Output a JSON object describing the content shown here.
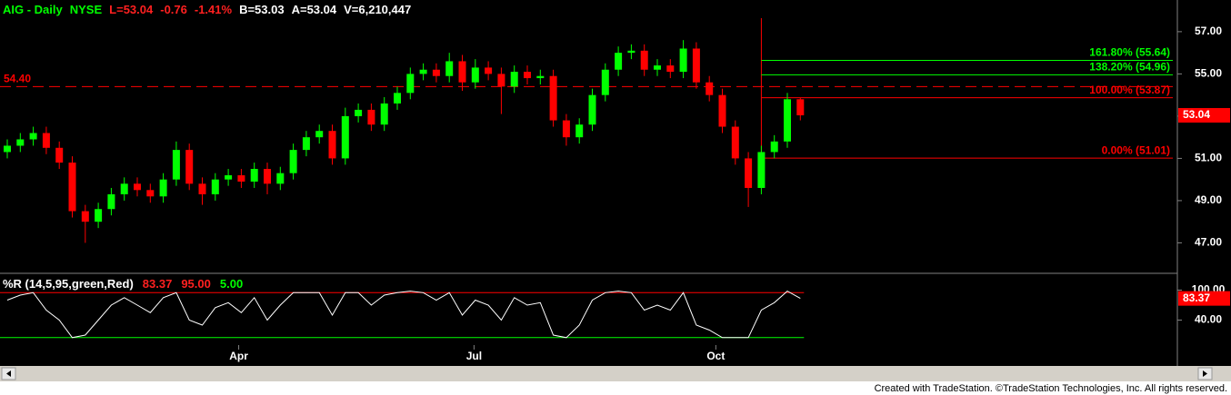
{
  "header": {
    "symbol": "AIG - Daily",
    "exchange": "NYSE",
    "last": "L=53.04",
    "change": "-0.76",
    "change_pct": "-1.41%",
    "bid": "B=53.03",
    "ask": "A=53.04",
    "volume": "V=6,210,447"
  },
  "chart_data": [
    {
      "type": "candlestick",
      "xlim": [
        -0.56,
        90
      ],
      "ylim": [
        45.6,
        58.5
      ],
      "xticks": [
        {
          "value": 17.8,
          "label": "Apr"
        },
        {
          "value": 35.9,
          "label": "Jul"
        },
        {
          "value": 54.5,
          "label": "Oct"
        }
      ],
      "yticks": [
        {
          "value": 57,
          "label": "57.00"
        },
        {
          "value": 55,
          "label": "55.00"
        },
        {
          "value": 53,
          "label": "53.00"
        },
        {
          "value": 51,
          "label": "51.00"
        },
        {
          "value": 49,
          "label": "49.00"
        },
        {
          "value": 47,
          "label": "47.00"
        }
      ],
      "up_color": "#00ff00",
      "down_color": "#ff0000",
      "open": [
        51.3,
        51.6,
        51.9,
        52.2,
        51.5,
        50.8,
        48.5,
        48.0,
        48.6,
        49.3,
        49.8,
        49.5,
        49.2,
        50.0,
        51.4,
        49.8,
        49.3,
        50.0,
        50.2,
        49.9,
        50.5,
        49.8,
        50.3,
        51.4,
        52.0,
        52.3,
        51.0,
        53.0,
        53.3,
        52.6,
        53.6,
        54.1,
        55.0,
        55.2,
        54.9,
        55.6,
        54.6,
        55.3,
        55.0,
        54.4,
        55.1,
        54.8,
        54.9,
        52.8,
        52.0,
        52.6,
        54.0,
        55.2,
        56.0,
        56.1,
        55.2,
        55.4,
        55.1,
        56.2,
        54.6,
        54.0,
        52.5,
        51.0,
        49.6,
        51.3,
        51.8,
        53.8
      ],
      "high": [
        51.9,
        52.2,
        52.5,
        52.5,
        51.8,
        51.1,
        48.8,
        48.9,
        49.6,
        50.1,
        50.1,
        49.8,
        50.3,
        51.8,
        51.7,
        50.1,
        50.3,
        50.5,
        50.5,
        50.8,
        50.8,
        50.6,
        51.7,
        52.3,
        52.6,
        52.6,
        53.4,
        53.6,
        53.6,
        53.9,
        54.4,
        55.3,
        55.5,
        55.5,
        56.0,
        55.9,
        55.7,
        55.6,
        55.3,
        55.4,
        55.4,
        55.2,
        55.2,
        53.1,
        52.9,
        54.3,
        55.5,
        56.3,
        56.4,
        56.4,
        55.7,
        55.7,
        56.6,
        56.5,
        54.9,
        54.3,
        52.8,
        51.3,
        51.6,
        52.1,
        54.1,
        53.87
      ],
      "low": [
        51.0,
        51.3,
        51.6,
        51.2,
        50.5,
        48.2,
        47.0,
        47.7,
        48.3,
        49.0,
        49.2,
        48.9,
        48.9,
        49.7,
        49.5,
        48.8,
        49.0,
        49.7,
        49.6,
        49.6,
        49.3,
        49.5,
        50.0,
        51.1,
        51.7,
        50.7,
        50.7,
        52.7,
        52.3,
        52.3,
        53.3,
        53.8,
        54.7,
        54.6,
        54.6,
        54.2,
        54.3,
        54.7,
        53.1,
        54.1,
        54.5,
        54.5,
        52.5,
        51.6,
        51.7,
        52.3,
        53.7,
        54.9,
        55.7,
        54.9,
        54.9,
        54.8,
        54.8,
        54.3,
        53.7,
        52.2,
        50.7,
        48.7,
        49.3,
        51.0,
        51.5,
        52.8
      ],
      "close": [
        51.6,
        51.9,
        52.2,
        51.5,
        50.8,
        48.5,
        48.0,
        48.6,
        49.3,
        49.8,
        49.5,
        49.2,
        50.0,
        51.4,
        49.8,
        49.3,
        50.0,
        50.2,
        49.9,
        50.5,
        49.8,
        50.3,
        51.4,
        52.0,
        52.3,
        51.0,
        53.0,
        53.3,
        52.6,
        53.6,
        54.1,
        55.0,
        55.2,
        54.9,
        55.6,
        54.6,
        55.3,
        55.0,
        54.4,
        55.1,
        54.8,
        54.9,
        52.8,
        52.0,
        52.6,
        54.0,
        55.2,
        56.0,
        56.1,
        55.2,
        55.4,
        55.1,
        56.2,
        54.6,
        54.0,
        52.5,
        51.0,
        49.6,
        51.3,
        51.8,
        53.8,
        53.04
      ],
      "hline": {
        "value": 54.4,
        "label": "54.40",
        "color": "#ff0000"
      },
      "levels": [
        {
          "value": 55.64,
          "label": "161.80% (55.64)",
          "color": "#00ff00"
        },
        {
          "value": 54.96,
          "label": "138.20% (54.96)",
          "color": "#00ff00"
        },
        {
          "value": 53.87,
          "label": "100.00% (53.87)",
          "color": "#ff0000"
        },
        {
          "value": 51.01,
          "label": "0.00% (51.01)",
          "color": "#ff0000"
        }
      ],
      "last_tag": {
        "value": 53.04,
        "label": "53.04",
        "color": "#ff0000"
      }
    },
    {
      "type": "line",
      "title": "%R (14,5,95,green,Red)",
      "xlim": [
        -0.56,
        90
      ],
      "ylim": [
        -10,
        130
      ],
      "yticks": [
        {
          "value": 100,
          "label": "100.00"
        },
        {
          "value": 40,
          "label": "40.00"
        }
      ],
      "series": [
        {
          "color": "#ffffff",
          "values": [
            80,
            90,
            95,
            60,
            40,
            5,
            10,
            40,
            70,
            85,
            70,
            55,
            85,
            95,
            40,
            30,
            65,
            75,
            55,
            85,
            40,
            70,
            95,
            95,
            95,
            50,
            95,
            95,
            70,
            90,
            95,
            98,
            95,
            80,
            95,
            50,
            80,
            70,
            40,
            85,
            70,
            75,
            10,
            5,
            30,
            80,
            95,
            98,
            95,
            60,
            70,
            60,
            95,
            30,
            20,
            5,
            5,
            5,
            60,
            75,
            98,
            83.37
          ]
        }
      ],
      "levels": [
        {
          "value": 95,
          "label": "95.00",
          "color": "#ff0000"
        },
        {
          "value": 5,
          "label": "5.00",
          "color": "#00ff00"
        }
      ],
      "last_tag": {
        "value": 83.37,
        "label": "83.37",
        "color": "#ff0000"
      }
    }
  ],
  "footer": "Created with TradeStation. ©TradeStation Technologies, Inc. All rights reserved."
}
